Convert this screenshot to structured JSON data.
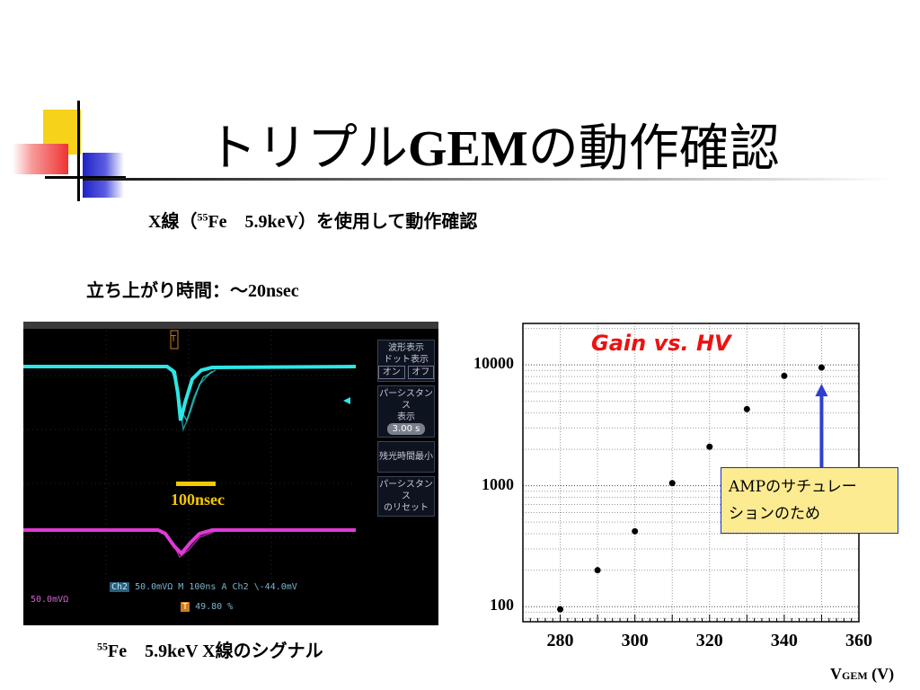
{
  "title": {
    "kana": "トリプル",
    "gem": "GEM",
    "rest": "の動作確認"
  },
  "subtitle": {
    "pre": "X線（",
    "sup": "55",
    "post": "Fe　5.9keV）を使用して動作確認"
  },
  "rise_time": "立ち上がり時間：～20nsec",
  "scope": {
    "menu": {
      "waveform": "波形表示",
      "dot": "ドット表示",
      "on": "オン",
      "off": "オフ",
      "persist": "パーシスタンス",
      "persist_sub": "表示",
      "persist_val": "3.00 s",
      "min_remain": "残光時間最小",
      "persist_reset": "パーシスタンス",
      "persist_reset_sub": "のリセット"
    },
    "status": {
      "ch2": "Ch2",
      "scale": "50.0mVΩ",
      "time": "M 100ns",
      "a": "A",
      "trig_ch": "Ch2",
      "trig_level": "\\-44.0mV"
    },
    "ch_label": "50.0mVΩ",
    "trig_pos": "49.80 %",
    "marker": "T",
    "scale_bar_label": "100nsec",
    "colors": {
      "ch1": "#2ee6e6",
      "ch2": "#e03ad6",
      "bar": "#f5c800"
    }
  },
  "caption": {
    "sup": "55",
    "text": "Fe　5.9keV X線のシグナル"
  },
  "chart_data": {
    "type": "scatter",
    "title": "Gain vs. HV",
    "xlabel_main": "V",
    "xlabel_sub": "GEM",
    "xlabel_unit": " (V)",
    "y_scale": "log",
    "xlim": [
      270,
      360
    ],
    "ylim": [
      75,
      22000
    ],
    "x_ticks": [
      280,
      300,
      320,
      340,
      360
    ],
    "y_ticks": [
      100,
      1000,
      10000
    ],
    "x": [
      280,
      290,
      300,
      310,
      320,
      330,
      340,
      350
    ],
    "y": [
      95,
      200,
      420,
      1050,
      2100,
      4300,
      8100,
      9500
    ],
    "grid": true,
    "annotation": {
      "line1": "AMPのサチュレー",
      "line2": "ションのため",
      "arrow_color": "#2f3fd0"
    }
  }
}
